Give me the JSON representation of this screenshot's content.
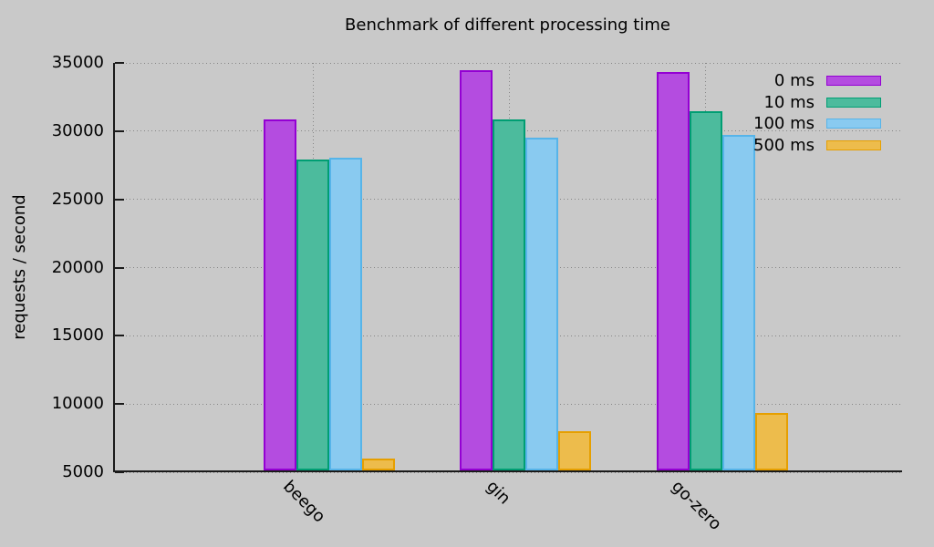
{
  "title": "Benchmark of different processing time",
  "ylabel": "requests / second",
  "colors": {
    "background": "#c9c9c9",
    "axis": "#1a1a1a",
    "grid": "#868686",
    "text": "#000000"
  },
  "chart_data": {
    "type": "bar",
    "title": "Benchmark of different processing time",
    "xlabel": "",
    "ylabel": "requests / second",
    "categories": [
      "beego",
      "gin",
      "go-zero"
    ],
    "series": [
      {
        "name": "0 ms",
        "border_color": "#9400d3",
        "fill_color": "#b44ce0",
        "values": [
          30750,
          34300,
          34200
        ]
      },
      {
        "name": "10 ms",
        "border_color": "#009e73",
        "fill_color": "#4cbb9d",
        "values": [
          27800,
          30700,
          31300
        ]
      },
      {
        "name": "100 ms",
        "border_color": "#56b4e9",
        "fill_color": "#89caf0",
        "values": [
          27900,
          29400,
          29600
        ]
      },
      {
        "name": "500 ms",
        "border_color": "#e69f00",
        "fill_color": "#edbc4c",
        "values": [
          5900,
          7850,
          9200
        ]
      }
    ],
    "ylim": [
      5000,
      35000
    ],
    "yticks": [
      5000,
      10000,
      15000,
      20000,
      25000,
      30000,
      35000
    ],
    "grid": true,
    "legend_position": "top-right"
  }
}
